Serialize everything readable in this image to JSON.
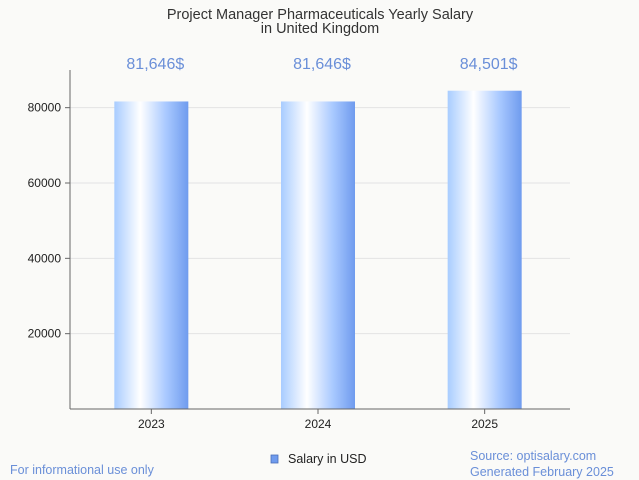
{
  "chart_data": {
    "type": "bar",
    "title_lines": [
      "Project Manager Pharmaceuticals Yearly Salary",
      "in United Kingdom"
    ],
    "categories": [
      "2023",
      "2024",
      "2025"
    ],
    "series": [
      {
        "name": "Salary in USD",
        "values": [
          81646,
          81646,
          84501
        ]
      }
    ],
    "data_labels": [
      "81,646$",
      "81,646$",
      "84,501$"
    ],
    "ylim": [
      0,
      90000
    ],
    "yticks": [
      {
        "value": 20000,
        "label": "20000"
      },
      {
        "value": 40000,
        "label": "40000"
      },
      {
        "value": 60000,
        "label": "60000"
      },
      {
        "value": 80000,
        "label": "80000"
      }
    ],
    "grid": true,
    "legend_position": "bottom",
    "colors": {
      "bar_light": "#ffffff",
      "bar_mid": "#b8d6ff",
      "bar_dark": "#6f9bee",
      "label": "#6a8fd8"
    }
  },
  "footer": {
    "note": "For informational use only",
    "source": "Source: optisalary.com",
    "generated": "Generated February 2025"
  }
}
